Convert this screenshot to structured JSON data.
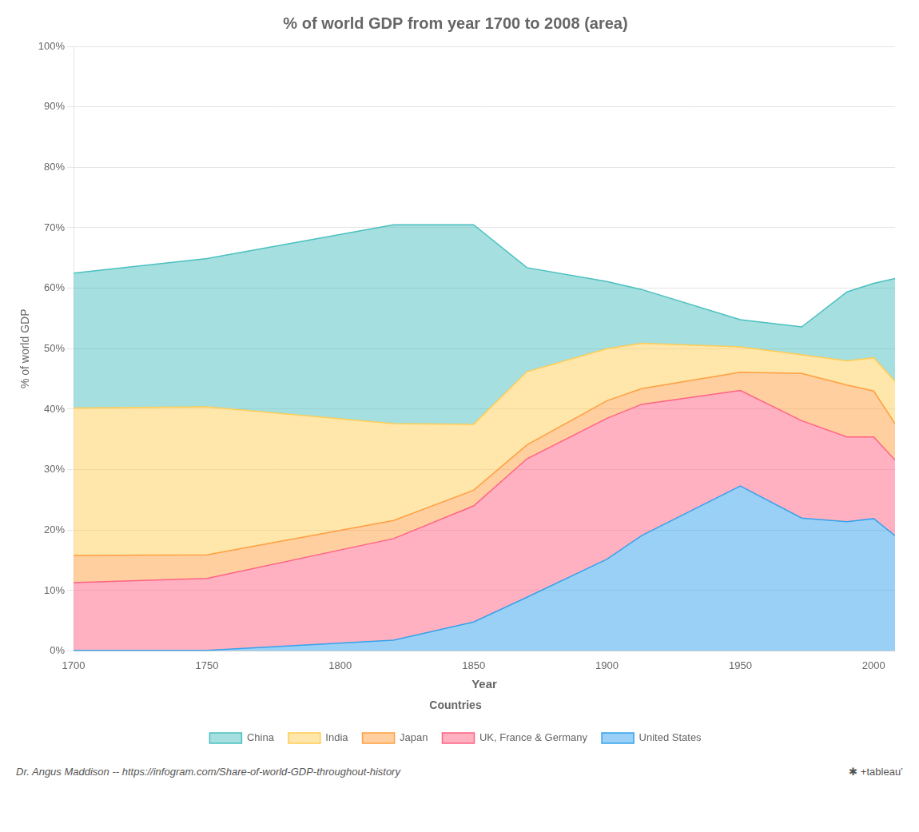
{
  "chart_data": {
    "type": "area",
    "title": "% of world GDP from year 1700 to 2008 (area)",
    "xlabel": "Year",
    "ylabel": "% of world GDP",
    "x": [
      1700,
      1750,
      1820,
      1850,
      1870,
      1900,
      1913,
      1950,
      1973,
      1990,
      2000,
      2008
    ],
    "series": [
      {
        "name": "United States",
        "values": [
          0.1,
          0.1,
          1.8,
          4.8,
          8.9,
          15.2,
          19.1,
          27.3,
          22.0,
          21.4,
          21.9,
          19.1
        ]
      },
      {
        "name": "UK, France & Germany",
        "values": [
          11.2,
          11.9,
          16.8,
          19.2,
          22.9,
          23.3,
          21.7,
          15.8,
          16.1,
          14.0,
          13.5,
          12.5
        ]
      },
      {
        "name": "Japan",
        "values": [
          4.5,
          3.9,
          3.0,
          2.6,
          2.3,
          2.9,
          2.6,
          3.0,
          7.8,
          8.6,
          7.6,
          6.0
        ]
      },
      {
        "name": "India",
        "values": [
          24.4,
          24.5,
          16.0,
          10.9,
          12.1,
          8.6,
          7.5,
          4.2,
          3.1,
          4.0,
          5.5,
          7.0
        ]
      },
      {
        "name": "China",
        "values": [
          22.3,
          24.5,
          32.9,
          33.0,
          17.2,
          11.1,
          8.9,
          4.5,
          4.6,
          11.4,
          12.3,
          17.0
        ]
      }
    ],
    "xlim": [
      1700,
      2008
    ],
    "ylim": [
      0,
      100
    ],
    "xticks": [
      1700,
      1750,
      1800,
      1850,
      1900,
      1950,
      2000
    ],
    "yticks": [
      {
        "value": 0,
        "label": "0%"
      },
      {
        "value": 10,
        "label": "10%"
      },
      {
        "value": 20,
        "label": "20%"
      },
      {
        "value": 30,
        "label": "30%"
      },
      {
        "value": 40,
        "label": "40%"
      },
      {
        "value": 50,
        "label": "50%"
      },
      {
        "value": 60,
        "label": "60%"
      },
      {
        "value": 70,
        "label": "70%"
      },
      {
        "value": 80,
        "label": "80%"
      },
      {
        "value": 90,
        "label": "90%"
      },
      {
        "value": 100,
        "label": "100%"
      }
    ],
    "grid": true,
    "stacked": true,
    "legend": "bottom",
    "legend_title": "Countries",
    "annotations": [
      "Dr. Angus Maddison -- https://infogram.com/Share-of-world-GDP-throughout-history",
      "✱ +tableau’"
    ]
  }
}
